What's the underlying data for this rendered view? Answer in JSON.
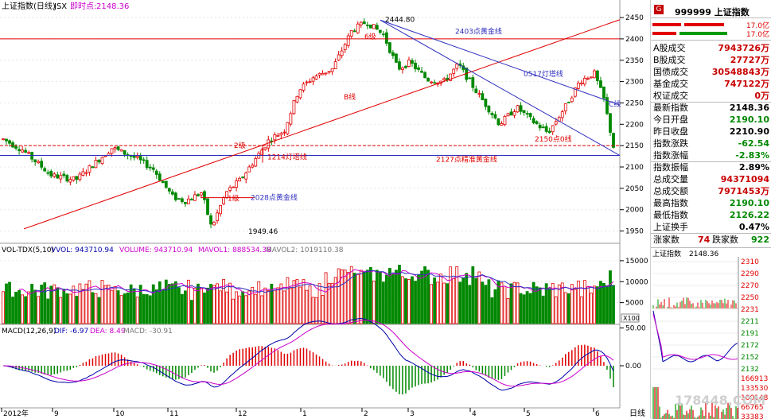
{
  "header": {
    "index_name": "上证指数(日线)",
    "ticker": "JSX",
    "instant_label": "即时点:",
    "instant_value": "2148.36"
  },
  "chart_data": [
    {
      "type": "candlestick",
      "title": "上证指数(日线) JSX",
      "y_ticks": [
        1950,
        2000,
        2050,
        2100,
        2150,
        2200,
        2250,
        2300,
        2350,
        2400,
        2450
      ],
      "ylim": [
        1925,
        2465
      ],
      "x_month_labels": [
        "2012年",
        "9",
        "10",
        "11",
        "12",
        "1",
        "2",
        "3",
        "4",
        "5",
        "6"
      ],
      "annotations": {
        "peak": "2444.80",
        "low": "1949.46",
        "gold_2403": "2403点黄金线",
        "gold_2028": "2028点黄金线",
        "gold_2127": "2127点精准黄金线",
        "line_0517": "0517灯塔线",
        "line_1214": "1214灯塔线",
        "line_2150": "2150点0线",
        "b_line": "B线",
        "c_line": "C线",
        "level_1": "1级",
        "level_2": "2级",
        "level_6": "6级"
      }
    },
    {
      "type": "bar",
      "title": "VOL-TDX(5,10)",
      "series": [
        {
          "name": "VVOL",
          "value": "943710.94"
        },
        {
          "name": "VOLUME",
          "value": "943710.94"
        },
        {
          "name": "MAVOL1",
          "value": "888534.38"
        },
        {
          "name": "MAVOL2",
          "value": "1019110.38"
        }
      ],
      "y_ticks": [
        5000,
        10000,
        15000
      ],
      "unit": "X100"
    },
    {
      "type": "line",
      "title": "MACD(12,26,9)",
      "series": [
        {
          "name": "DIF",
          "value": "-6.97"
        },
        {
          "name": "DEA",
          "value": "8.49"
        },
        {
          "name": "MACD",
          "value": "-30.91"
        }
      ],
      "y_ticks": [
        50.0,
        0.0
      ]
    }
  ],
  "footer": {
    "period_label": "日线"
  },
  "sidebar": {
    "badge": "G",
    "code_name": "999999 上证指数",
    "top_bars": [
      {
        "value": "17.0亿"
      },
      {
        "value": "17.0亿"
      }
    ],
    "stats": [
      {
        "label": "A股成交",
        "value": "7943726万",
        "color": "#c80000"
      },
      {
        "label": "B股成交",
        "value": "27727万",
        "color": "#c80000"
      },
      {
        "label": "国债成交",
        "value": "30548843万",
        "color": "#c80000"
      },
      {
        "label": "基金成交",
        "value": "747122万",
        "color": "#c80000"
      },
      {
        "label": "权证成交",
        "value": "0万",
        "color": "#c80000"
      },
      {
        "label": "最新指数",
        "value": "2148.36",
        "color": "#000000"
      },
      {
        "label": "今日开盘",
        "value": "2190.10",
        "color": "#008800"
      },
      {
        "label": "昨日收盘",
        "value": "2210.90",
        "color": "#000000"
      },
      {
        "label": "指数涨跌",
        "value": "-62.54",
        "color": "#008800"
      },
      {
        "label": "指数涨幅",
        "value": "-2.83%",
        "color": "#008800"
      },
      {
        "label": "指数振幅",
        "value": "2.89%",
        "color": "#000000"
      },
      {
        "label": "总成交量",
        "value": "94371094",
        "color": "#c80000"
      },
      {
        "label": "总成交额",
        "value": "7971453万",
        "color": "#c80000"
      },
      {
        "label": "最高指数",
        "value": "2190.10",
        "color": "#008800"
      },
      {
        "label": "最低指数",
        "value": "2126.22",
        "color": "#008800"
      },
      {
        "label": "上证换手",
        "value": "0.47%",
        "color": "#000000"
      }
    ],
    "rise_label": "涨家数",
    "rise_count": "74",
    "fall_label": "跌家数",
    "fall_count": "922",
    "mini_title": "上证指数",
    "mini_value": "2148.36",
    "mini_ticks": [
      "2310",
      "2290",
      "2270",
      "2250",
      "2231",
      "2211",
      "2191",
      "2172",
      "2152",
      "2132"
    ],
    "mini_vol_ticks": [
      "166913",
      "133530",
      "100148",
      "66765",
      "33383"
    ],
    "mini_pct_ticks": [
      "4.49%",
      "3.59%",
      "2.69%",
      "1.79%",
      "0.90%",
      "0.00%",
      "0.90%",
      "1.79%",
      "2.69%",
      "3.59%"
    ],
    "watermark": "178448.COM"
  }
}
